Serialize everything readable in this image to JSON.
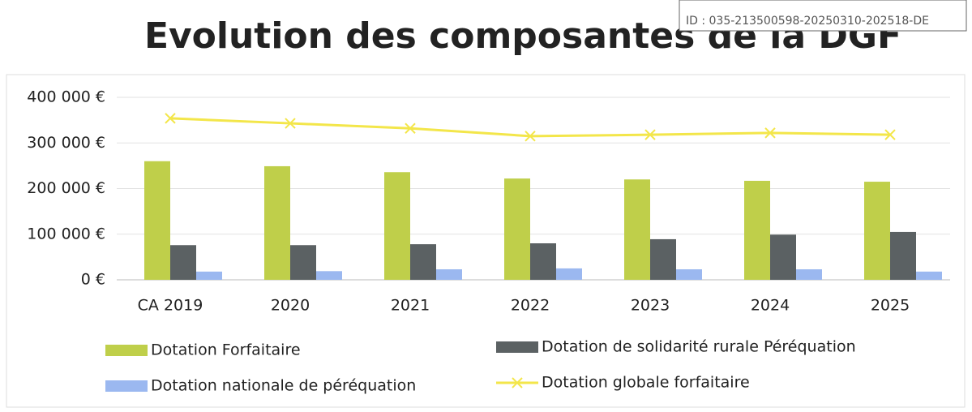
{
  "chart_data": {
    "type": "bar",
    "title": "Evolution des composantes de la DGF",
    "annotation": "ID : 035-213500598-20250310-202518-DE",
    "categories": [
      "CA 2019",
      "2020",
      "2021",
      "2022",
      "2023",
      "2024",
      "2025"
    ],
    "series": [
      {
        "name": "Dotation Forfaitaire",
        "color": "#bfcf4a",
        "values": [
          260000,
          249000,
          236000,
          222000,
          220000,
          217000,
          215000
        ]
      },
      {
        "name": "Dotation de solidarité rurale Péréquation",
        "color": "#5b6163",
        "values": [
          76000,
          76000,
          78000,
          80000,
          89000,
          99000,
          105000
        ]
      },
      {
        "name": "Dotation nationale de péréquation",
        "color": "#9bb8f0",
        "values": [
          18000,
          19000,
          23000,
          25000,
          23000,
          23000,
          18000
        ]
      },
      {
        "name": "Dotation globale forfaitaire",
        "color": "#f3e64a",
        "type": "line",
        "values": [
          354000,
          343000,
          332000,
          315000,
          318000,
          322000,
          318000
        ]
      }
    ],
    "ylim": [
      0,
      400000
    ],
    "yticks": [
      {
        "value": 0,
        "label": "0 €"
      },
      {
        "value": 100000,
        "label": "100 000 €"
      },
      {
        "value": 200000,
        "label": "200 000 €"
      },
      {
        "value": 300000,
        "label": "300 000 €"
      },
      {
        "value": 400000,
        "label": "400 000 €"
      }
    ],
    "grid": true
  }
}
